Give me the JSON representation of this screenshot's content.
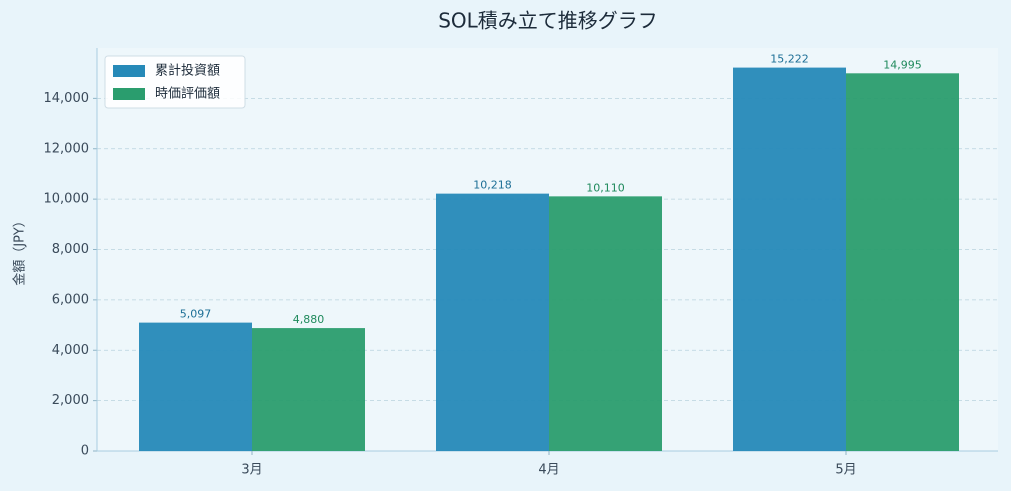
{
  "chart_data": {
    "type": "bar",
    "title": "SOL積み立て推移グラフ",
    "y_label": "金額（JPY）",
    "categories": [
      "3月",
      "4月",
      "5月"
    ],
    "series": [
      {
        "name": "累計投資額",
        "color": "#2589b8",
        "values": [
          5097,
          10218,
          15222
        ],
        "value_labels": [
          "5,097",
          "10,218",
          "15,222"
        ]
      },
      {
        "name": "時価評価額",
        "color": "#2a9d6e",
        "values": [
          4880,
          10110,
          14995
        ],
        "value_labels": [
          "4,880",
          "10,110",
          "14,995"
        ]
      }
    ],
    "ylim": [
      0,
      16000
    ],
    "yticks": [
      0,
      {
        "value": 2000,
        "label": "2,000"
      },
      {
        "value": 4000,
        "label": "4,000"
      },
      {
        "value": 6000,
        "label": "6,000"
      },
      {
        "value": 8000,
        "label": "8,000"
      },
      {
        "value": 10000,
        "label": "10,000"
      },
      {
        "value": 12000,
        "label": "12,000"
      },
      {
        "value": 14000,
        "label": "14,000"
      }
    ],
    "grid": true,
    "legend": "upper left"
  }
}
